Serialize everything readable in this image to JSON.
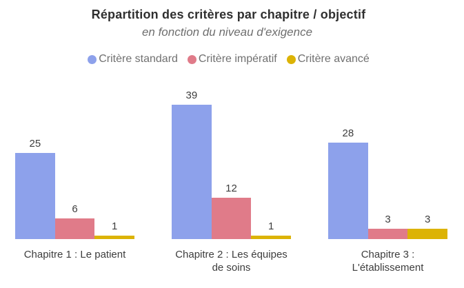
{
  "chart_data": {
    "type": "bar",
    "title": "Répartition des critères par chapitre / objectif",
    "subtitle": "en fonction du niveau d'exigence",
    "categories": [
      "Chapitre 1 : Le patient",
      "Chapitre 2 : Les équipes de soins",
      "Chapitre 3 : L'établissement"
    ],
    "series": [
      {
        "name": "Critère standard",
        "color": "#8da1eb",
        "values": [
          25,
          39,
          28
        ]
      },
      {
        "name": "Critère impératif",
        "color": "#e07b89",
        "values": [
          6,
          12,
          3
        ]
      },
      {
        "name": "Critère avancé",
        "color": "#dcb305",
        "values": [
          1,
          1,
          3
        ]
      }
    ],
    "legend_position": "top",
    "legend_dot_icon": "circle-icon",
    "grid": false,
    "axes_visible": false,
    "value_labels_visible": true,
    "ylim": [
      0,
      44
    ]
  }
}
